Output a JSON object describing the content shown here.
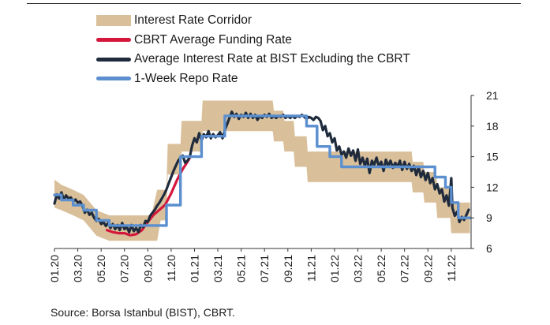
{
  "legend": [
    {
      "label": "Interest Rate Corridor",
      "color": "#d9c09a",
      "kind": "band"
    },
    {
      "label": "CBRT Average Funding Rate",
      "color": "#d5173c",
      "kind": "line"
    },
    {
      "label": "Average Interest Rate at BIST Excluding the CBRT",
      "color": "#1f2b3c",
      "kind": "line"
    },
    {
      "label": "1-Week Repo Rate",
      "color": "#5b8fcf",
      "kind": "line"
    }
  ],
  "source": "Source: Borsa Istanbul (BIST), CBRT.",
  "chart_data": {
    "type": "line",
    "title": "",
    "x_tick_labels": [
      "01.20",
      "03.20",
      "05.20",
      "07.20",
      "09.20",
      "11.20",
      "01.21",
      "03.21",
      "05.21",
      "07.21",
      "09.21",
      "11.21",
      "01.22",
      "03.22",
      "05.22",
      "07.22",
      "09.22",
      "11.22"
    ],
    "y_ticks": [
      6,
      9,
      12,
      15,
      18,
      21
    ],
    "ylim": [
      6,
      21
    ],
    "xlim": [
      0,
      35.7
    ],
    "x_unit": "months since 01.2020",
    "grid": false,
    "legend_position": "top",
    "series": [
      {
        "name": "Interest Rate Corridor",
        "kind": "band",
        "points": [
          {
            "x": 0,
            "lower": 10.0,
            "upper": 12.75
          },
          {
            "x": 0.6,
            "lower": 9.75,
            "upper": 12.25
          },
          {
            "x": 1.6,
            "lower": 9.25,
            "upper": 11.75
          },
          {
            "x": 2.5,
            "lower": 8.75,
            "upper": 11.25
          },
          {
            "x": 3.6,
            "lower": 7.25,
            "upper": 9.75
          },
          {
            "x": 4.7,
            "lower": 6.75,
            "upper": 9.25
          },
          {
            "x": 5.5,
            "lower": 6.75,
            "upper": 9.25
          },
          {
            "x": 7.0,
            "lower": 6.75,
            "upper": 9.25
          },
          {
            "x": 8.3,
            "lower": 6.75,
            "upper": 9.25
          },
          {
            "x": 8.8,
            "lower": 6.75,
            "upper": 11.75
          },
          {
            "x": 9.1,
            "lower": 8.75,
            "upper": 11.75
          },
          {
            "x": 9.6,
            "lower": 8.75,
            "upper": 11.75
          },
          {
            "x": 9.7,
            "lower": 13.25,
            "upper": 16.25
          },
          {
            "x": 10.8,
            "lower": 13.25,
            "upper": 16.25
          },
          {
            "x": 10.9,
            "lower": 15.5,
            "upper": 18.5
          },
          {
            "x": 12.6,
            "lower": 15.5,
            "upper": 18.5
          },
          {
            "x": 12.7,
            "lower": 17.5,
            "upper": 20.5
          },
          {
            "x": 18.7,
            "lower": 17.5,
            "upper": 20.5
          },
          {
            "x": 18.8,
            "lower": 16.5,
            "upper": 19.5
          },
          {
            "x": 19.6,
            "lower": 16.5,
            "upper": 19.5
          },
          {
            "x": 19.7,
            "lower": 15.5,
            "upper": 18.5
          },
          {
            "x": 20.5,
            "lower": 15.5,
            "upper": 18.5
          },
          {
            "x": 20.6,
            "lower": 14.0,
            "upper": 17.0
          },
          {
            "x": 21.6,
            "lower": 14.0,
            "upper": 17.0
          },
          {
            "x": 21.7,
            "lower": 12.5,
            "upper": 15.5
          },
          {
            "x": 30.6,
            "lower": 12.5,
            "upper": 15.5
          },
          {
            "x": 30.7,
            "lower": 11.5,
            "upper": 14.5
          },
          {
            "x": 31.6,
            "lower": 11.5,
            "upper": 14.5
          },
          {
            "x": 31.7,
            "lower": 10.5,
            "upper": 13.5
          },
          {
            "x": 32.7,
            "lower": 10.5,
            "upper": 13.5
          },
          {
            "x": 32.8,
            "lower": 9.0,
            "upper": 12.0
          },
          {
            "x": 33.9,
            "lower": 9.0,
            "upper": 12.0
          },
          {
            "x": 34.0,
            "lower": 7.5,
            "upper": 10.5
          },
          {
            "x": 35.6,
            "lower": 7.5,
            "upper": 10.5
          }
        ]
      },
      {
        "name": "CBRT Average Funding Rate",
        "kind": "line",
        "points": [
          [
            4.5,
            7.8
          ],
          [
            5.0,
            7.6
          ],
          [
            5.5,
            7.5
          ],
          [
            6.0,
            7.5
          ],
          [
            6.5,
            7.3
          ],
          [
            7.0,
            7.4
          ],
          [
            7.5,
            7.8
          ],
          [
            8.0,
            8.6
          ],
          [
            8.5,
            9.3
          ],
          [
            9.0,
            9.8
          ],
          [
            9.5,
            10.3
          ],
          [
            10.0,
            11.4
          ],
          [
            10.5,
            12.7
          ],
          [
            11.0,
            13.8
          ],
          [
            11.4,
            14.5
          ],
          [
            11.6,
            14.9
          ]
        ]
      },
      {
        "name": "Average Interest Rate at BIST Excluding the CBRT",
        "kind": "line",
        "points": [
          [
            0,
            10.4
          ],
          [
            0.2,
            11.3
          ],
          [
            0.4,
            10.9
          ],
          [
            0.6,
            11.5
          ],
          [
            0.8,
            10.8
          ],
          [
            1.0,
            11.2
          ],
          [
            1.2,
            10.9
          ],
          [
            1.4,
            11.0
          ],
          [
            1.6,
            10.6
          ],
          [
            1.8,
            10.8
          ],
          [
            2.0,
            10.5
          ],
          [
            2.2,
            10.6
          ],
          [
            2.4,
            10.2
          ],
          [
            2.6,
            9.5
          ],
          [
            2.8,
            9.8
          ],
          [
            3.0,
            9.3
          ],
          [
            3.2,
            9.5
          ],
          [
            3.4,
            9.0
          ],
          [
            3.6,
            8.7
          ],
          [
            3.8,
            8.9
          ],
          [
            4.0,
            8.4
          ],
          [
            4.2,
            8.6
          ],
          [
            4.4,
            8.2
          ],
          [
            4.6,
            8.5
          ],
          [
            4.8,
            8.0
          ],
          [
            5.0,
            8.4
          ],
          [
            5.2,
            7.9
          ],
          [
            5.4,
            8.3
          ],
          [
            5.6,
            7.8
          ],
          [
            5.8,
            8.5
          ],
          [
            6.0,
            7.9
          ],
          [
            6.2,
            8.1
          ],
          [
            6.4,
            7.6
          ],
          [
            6.6,
            8.3
          ],
          [
            6.8,
            7.7
          ],
          [
            7.0,
            8.0
          ],
          [
            7.2,
            7.6
          ],
          [
            7.4,
            8.3
          ],
          [
            7.6,
            8.1
          ],
          [
            7.8,
            8.7
          ],
          [
            8.0,
            8.6
          ],
          [
            8.2,
            9.2
          ],
          [
            8.4,
            9.5
          ],
          [
            8.6,
            9.8
          ],
          [
            8.8,
            10.2
          ],
          [
            9.0,
            10.5
          ],
          [
            9.2,
            10.9
          ],
          [
            9.4,
            11.3
          ],
          [
            9.6,
            11.8
          ],
          [
            9.8,
            12.4
          ],
          [
            10.0,
            13.0
          ],
          [
            10.2,
            13.6
          ],
          [
            10.4,
            14.1
          ],
          [
            10.6,
            14.6
          ],
          [
            10.8,
            14.9
          ],
          [
            11.0,
            15.1
          ],
          [
            11.2,
            14.4
          ],
          [
            11.4,
            14.6
          ],
          [
            11.6,
            15.0
          ],
          [
            11.8,
            16.1
          ],
          [
            12.0,
            16.8
          ],
          [
            12.2,
            16.4
          ],
          [
            12.4,
            17.3
          ],
          [
            12.6,
            16.6
          ],
          [
            12.8,
            17.2
          ],
          [
            13.0,
            16.9
          ],
          [
            13.2,
            17.5
          ],
          [
            13.4,
            16.8
          ],
          [
            13.6,
            17.2
          ],
          [
            13.8,
            16.9
          ],
          [
            14.0,
            17.1
          ],
          [
            14.2,
            17.4
          ],
          [
            14.4,
            16.8
          ],
          [
            14.6,
            17.6
          ],
          [
            14.8,
            18.2
          ],
          [
            15.0,
            18.8
          ],
          [
            15.2,
            19.4
          ],
          [
            15.4,
            18.9
          ],
          [
            15.6,
            19.2
          ],
          [
            15.8,
            18.7
          ],
          [
            16.0,
            19.1
          ],
          [
            16.2,
            18.9
          ],
          [
            16.4,
            19.3
          ],
          [
            16.6,
            18.8
          ],
          [
            16.8,
            19.2
          ],
          [
            17.0,
            18.8
          ],
          [
            17.2,
            19.1
          ],
          [
            17.4,
            18.6
          ],
          [
            17.6,
            19.0
          ],
          [
            17.8,
            18.8
          ],
          [
            18.0,
            19.1
          ],
          [
            18.2,
            18.9
          ],
          [
            18.4,
            19.2
          ],
          [
            18.6,
            18.8
          ],
          [
            18.8,
            19.0
          ],
          [
            19.0,
            18.8
          ],
          [
            19.2,
            19.0
          ],
          [
            19.4,
            18.9
          ],
          [
            19.6,
            19.1
          ],
          [
            19.8,
            18.8
          ],
          [
            20.0,
            19.0
          ],
          [
            20.2,
            18.8
          ],
          [
            20.4,
            19.0
          ],
          [
            20.6,
            18.8
          ],
          [
            20.8,
            19.0
          ],
          [
            21.0,
            18.9
          ],
          [
            21.2,
            19.1
          ],
          [
            21.4,
            18.9
          ],
          [
            21.6,
            18.7
          ],
          [
            21.8,
            18.9
          ],
          [
            22.0,
            18.8
          ],
          [
            22.2,
            18.6
          ],
          [
            22.4,
            18.9
          ],
          [
            22.6,
            18.8
          ],
          [
            22.8,
            18.5
          ],
          [
            23.0,
            17.6
          ],
          [
            23.2,
            18.0
          ],
          [
            23.4,
            17.0
          ],
          [
            23.6,
            17.3
          ],
          [
            23.8,
            16.4
          ],
          [
            24.0,
            16.8
          ],
          [
            24.2,
            15.6
          ],
          [
            24.4,
            16.0
          ],
          [
            24.6,
            15.2
          ],
          [
            24.8,
            15.5
          ],
          [
            25.0,
            14.9
          ],
          [
            25.2,
            15.8
          ],
          [
            25.4,
            15.1
          ],
          [
            25.6,
            15.6
          ],
          [
            25.8,
            14.6
          ],
          [
            26.0,
            15.7
          ],
          [
            26.2,
            14.3
          ],
          [
            26.4,
            14.9
          ],
          [
            26.6,
            14.1
          ],
          [
            26.8,
            14.8
          ],
          [
            27.0,
            13.4
          ],
          [
            27.2,
            14.6
          ],
          [
            27.4,
            14.2
          ],
          [
            27.6,
            14.9
          ],
          [
            27.8,
            14.0
          ],
          [
            28.0,
            14.5
          ],
          [
            28.2,
            13.6
          ],
          [
            28.4,
            14.7
          ],
          [
            28.6,
            14.1
          ],
          [
            28.8,
            14.6
          ],
          [
            29.0,
            13.9
          ],
          [
            29.2,
            14.4
          ],
          [
            29.4,
            14.0
          ],
          [
            29.6,
            14.6
          ],
          [
            29.8,
            13.7
          ],
          [
            30.0,
            14.5
          ],
          [
            30.2,
            13.8
          ],
          [
            30.4,
            14.3
          ],
          [
            30.6,
            13.6
          ],
          [
            30.8,
            14.1
          ],
          [
            31.0,
            13.2
          ],
          [
            31.2,
            14.0
          ],
          [
            31.4,
            13.0
          ],
          [
            31.6,
            13.6
          ],
          [
            31.8,
            12.7
          ],
          [
            32.0,
            13.4
          ],
          [
            32.2,
            12.4
          ],
          [
            32.4,
            12.9
          ],
          [
            32.6,
            11.8
          ],
          [
            32.8,
            12.3
          ],
          [
            33.0,
            11.4
          ],
          [
            33.2,
            11.8
          ],
          [
            33.4,
            10.6
          ],
          [
            33.6,
            11.2
          ],
          [
            33.8,
            10.2
          ],
          [
            34.0,
            12.9
          ],
          [
            34.1,
            10.0
          ],
          [
            34.3,
            9.2
          ],
          [
            34.5,
            9.6
          ],
          [
            34.7,
            8.6
          ],
          [
            34.9,
            9.1
          ],
          [
            35.1,
            8.8
          ],
          [
            35.3,
            9.3
          ],
          [
            35.5,
            9.8
          ]
        ]
      },
      {
        "name": "1-Week Repo Rate",
        "kind": "line",
        "points": [
          [
            0,
            11.25
          ],
          [
            0.6,
            11.25
          ],
          [
            0.6,
            10.75
          ],
          [
            1.6,
            10.75
          ],
          [
            1.6,
            10.25
          ],
          [
            2.5,
            10.25
          ],
          [
            2.5,
            9.75
          ],
          [
            3.6,
            9.75
          ],
          [
            3.6,
            8.75
          ],
          [
            4.7,
            8.75
          ],
          [
            4.7,
            8.25
          ],
          [
            9.6,
            8.25
          ],
          [
            9.6,
            10.25
          ],
          [
            10.8,
            10.25
          ],
          [
            10.8,
            15.0
          ],
          [
            12.6,
            15.0
          ],
          [
            12.6,
            17.0
          ],
          [
            14.0,
            17.0
          ],
          [
            14.0,
            17.0
          ],
          [
            14.6,
            17.0
          ],
          [
            14.6,
            19.0
          ],
          [
            21.6,
            19.0
          ],
          [
            21.6,
            18.0
          ],
          [
            22.5,
            18.0
          ],
          [
            22.5,
            16.0
          ],
          [
            23.6,
            16.0
          ],
          [
            23.6,
            15.0
          ],
          [
            24.6,
            15.0
          ],
          [
            24.6,
            14.0
          ],
          [
            32.6,
            14.0
          ],
          [
            32.6,
            13.0
          ],
          [
            33.5,
            13.0
          ],
          [
            33.5,
            12.0
          ],
          [
            34.0,
            12.0
          ],
          [
            34.0,
            10.5
          ],
          [
            34.6,
            10.5
          ],
          [
            34.6,
            9.0
          ],
          [
            35.6,
            9.0
          ]
        ]
      }
    ]
  }
}
